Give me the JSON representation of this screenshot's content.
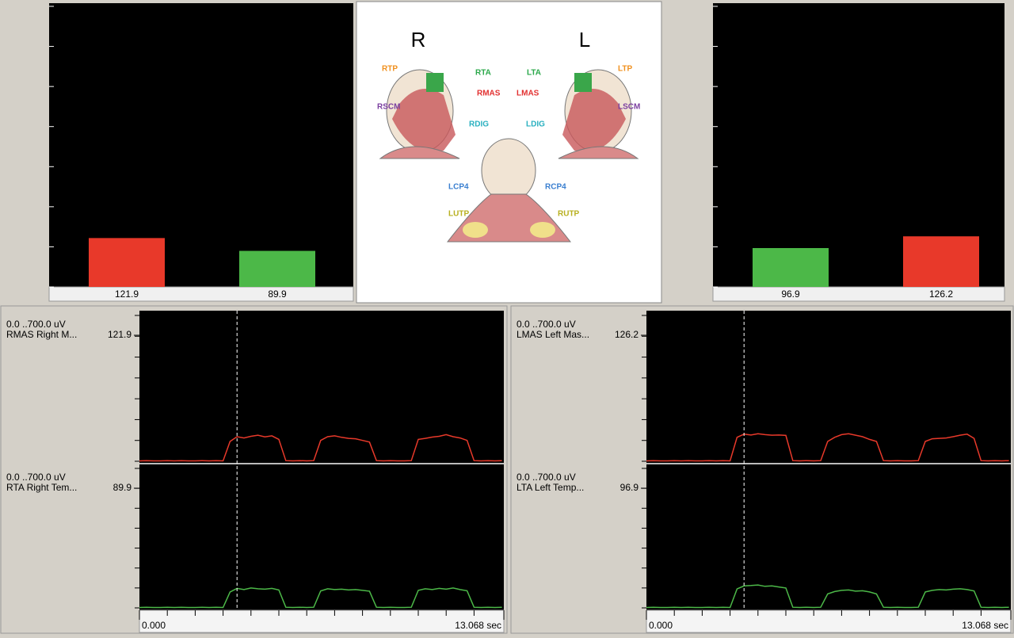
{
  "top_left": {
    "values": [
      121.9,
      89.9
    ],
    "colors": [
      "#e8392a",
      "#4cb848"
    ]
  },
  "top_right": {
    "values": [
      96.9,
      126.2
    ],
    "colors": [
      "#4cb848",
      "#e8392a"
    ]
  },
  "bar_ylim": [
    0,
    700
  ],
  "bar_yticks": [
    0,
    100,
    200,
    300,
    400,
    500,
    600,
    700
  ],
  "anatomy": {
    "right_side": "R",
    "left_side": "L",
    "labels": [
      "RTP",
      "RTA",
      "RMAS",
      "RSCM",
      "RDIG",
      "LTA",
      "LTP",
      "LMAS",
      "LSCM",
      "LDIG",
      "LCP4",
      "RCP4",
      "LUTP",
      "RUTP"
    ]
  },
  "traces": {
    "xlim": [
      0,
      13.068
    ],
    "xticks": [
      {
        "value": 0,
        "label": "0.000"
      },
      {
        "value": 13.068,
        "label": "13.068 sec"
      }
    ],
    "xminor_ticks": [
      1,
      2,
      3,
      4,
      5,
      6,
      7,
      8,
      9,
      10,
      11,
      12
    ],
    "cursor_x": 3.5,
    "ylim": [
      0,
      700
    ],
    "yticks": [
      0,
      100,
      200,
      300,
      400,
      500,
      600,
      700
    ],
    "x": [
      0,
      0.25,
      0.5,
      0.75,
      1,
      1.25,
      1.5,
      1.75,
      2,
      2.25,
      2.5,
      2.75,
      3,
      3.25,
      3.5,
      3.75,
      4,
      4.25,
      4.5,
      4.75,
      5,
      5.25,
      5.5,
      5.75,
      6,
      6.25,
      6.5,
      6.75,
      7,
      7.25,
      7.5,
      7.75,
      8,
      8.25,
      8.5,
      8.75,
      9,
      9.25,
      9.5,
      9.75,
      10,
      10.25,
      10.5,
      10.75,
      11,
      11.25,
      11.5,
      11.75,
      12,
      12.25,
      12.5,
      12.75,
      13
    ],
    "panels": [
      {
        "channels": [
          {
            "range": "0.0 ..700.0 uV",
            "name": "RMAS Right M...",
            "readout": 121.9,
            "color": "#e8392a",
            "values": [
              2,
              3,
              2,
              2,
              3,
              2,
              3,
              2,
              2,
              3,
              2,
              3,
              2,
              95,
              118,
              112,
              120,
              125,
              117,
              122,
              105,
              3,
              2,
              3,
              2,
              3,
              100,
              118,
              122,
              115,
              110,
              108,
              100,
              92,
              3,
              2,
              3,
              2,
              2,
              3,
              105,
              110,
              116,
              120,
              128,
              118,
              112,
              100,
              3,
              2,
              3,
              2,
              3
            ]
          },
          {
            "range": "0.0 ..700.0 uV",
            "name": "RTA Right Tem...",
            "readout": 89.9,
            "color": "#4cb848",
            "values": [
              2,
              3,
              2,
              2,
              3,
              2,
              3,
              2,
              2,
              3,
              2,
              3,
              2,
              80,
              98,
              92,
              100,
              96,
              94,
              98,
              90,
              3,
              2,
              3,
              2,
              3,
              85,
              96,
              92,
              94,
              90,
              92,
              88,
              84,
              3,
              2,
              3,
              2,
              2,
              3,
              88,
              96,
              92,
              98,
              94,
              100,
              92,
              86,
              3,
              2,
              3,
              2,
              3
            ]
          }
        ]
      },
      {
        "channels": [
          {
            "range": "0.0 ..700.0 uV",
            "name": "LMAS Left Mas...",
            "readout": 126.2,
            "color": "#e8392a",
            "values": [
              2,
              3,
              2,
              2,
              3,
              2,
              3,
              2,
              2,
              3,
              2,
              3,
              2,
              115,
              130,
              126,
              132,
              128,
              125,
              126,
              124,
              3,
              2,
              3,
              2,
              3,
              95,
              115,
              128,
              132,
              125,
              118,
              105,
              95,
              3,
              2,
              3,
              2,
              2,
              3,
              95,
              108,
              110,
              112,
              118,
              125,
              130,
              110,
              3,
              2,
              3,
              2,
              3
            ]
          },
          {
            "range": "0.0 ..700.0 uV",
            "name": "LTA Left Temp...",
            "readout": 96.9,
            "color": "#4cb848",
            "values": [
              2,
              3,
              2,
              2,
              3,
              2,
              3,
              2,
              2,
              3,
              2,
              3,
              2,
              95,
              110,
              112,
              115,
              108,
              110,
              105,
              100,
              3,
              2,
              3,
              2,
              3,
              70,
              82,
              88,
              90,
              84,
              86,
              80,
              70,
              3,
              2,
              3,
              2,
              2,
              3,
              80,
              88,
              92,
              90,
              94,
              96,
              92,
              85,
              3,
              2,
              3,
              2,
              3
            ]
          }
        ]
      }
    ]
  }
}
